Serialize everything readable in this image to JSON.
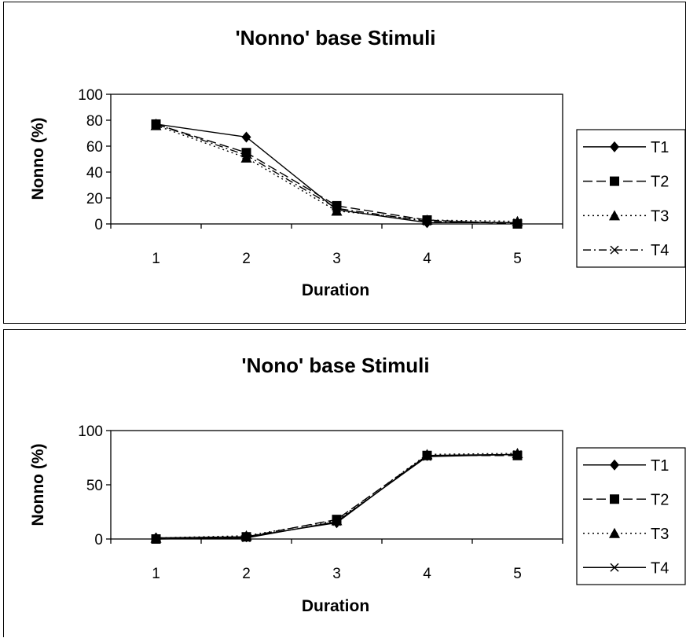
{
  "chart_data": [
    {
      "type": "line",
      "title": "'Nonno' base Stimuli",
      "xlabel": "Duration",
      "ylabel": "Nonno (%)",
      "categories": [
        "1",
        "2",
        "3",
        "4",
        "5"
      ],
      "ylim": [
        0,
        100
      ],
      "yticks": [
        "0",
        "20",
        "40",
        "60",
        "80",
        "100"
      ],
      "grid": false,
      "legend": "right",
      "series": [
        {
          "name": "T1",
          "values": [
            77,
            67,
            11,
            1,
            1
          ],
          "dash": "solid",
          "marker": "diamond"
        },
        {
          "name": "T2",
          "values": [
            77,
            55,
            14,
            3,
            0
          ],
          "dash": "dashed",
          "marker": "square"
        },
        {
          "name": "T3",
          "values": [
            76,
            51,
            10,
            3,
            2
          ],
          "dash": "dotted",
          "marker": "triangle"
        },
        {
          "name": "T4",
          "values": [
            77,
            53,
            12,
            2,
            1
          ],
          "dash": "dashdot",
          "marker": "x"
        }
      ]
    },
    {
      "type": "line",
      "title": "'Nono' base Stimuli",
      "xlabel": "Duration",
      "ylabel": "Nonno (%)",
      "categories": [
        "1",
        "2",
        "3",
        "4",
        "5"
      ],
      "ylim": [
        0,
        100
      ],
      "yticks": [
        "0",
        "50",
        "100"
      ],
      "grid": false,
      "legend": "right",
      "series": [
        {
          "name": "T1",
          "values": [
            1,
            2,
            15,
            77,
            78
          ],
          "dash": "solid",
          "marker": "diamond"
        },
        {
          "name": "T2",
          "values": [
            0,
            2,
            18,
            77,
            77
          ],
          "dash": "dashed",
          "marker": "square"
        },
        {
          "name": "T3",
          "values": [
            1,
            3,
            17,
            78,
            79
          ],
          "dash": "dotted",
          "marker": "triangle"
        },
        {
          "name": "T4",
          "values": [
            0,
            1,
            16,
            76,
            78
          ],
          "dash": "solid",
          "marker": "x"
        }
      ]
    }
  ]
}
